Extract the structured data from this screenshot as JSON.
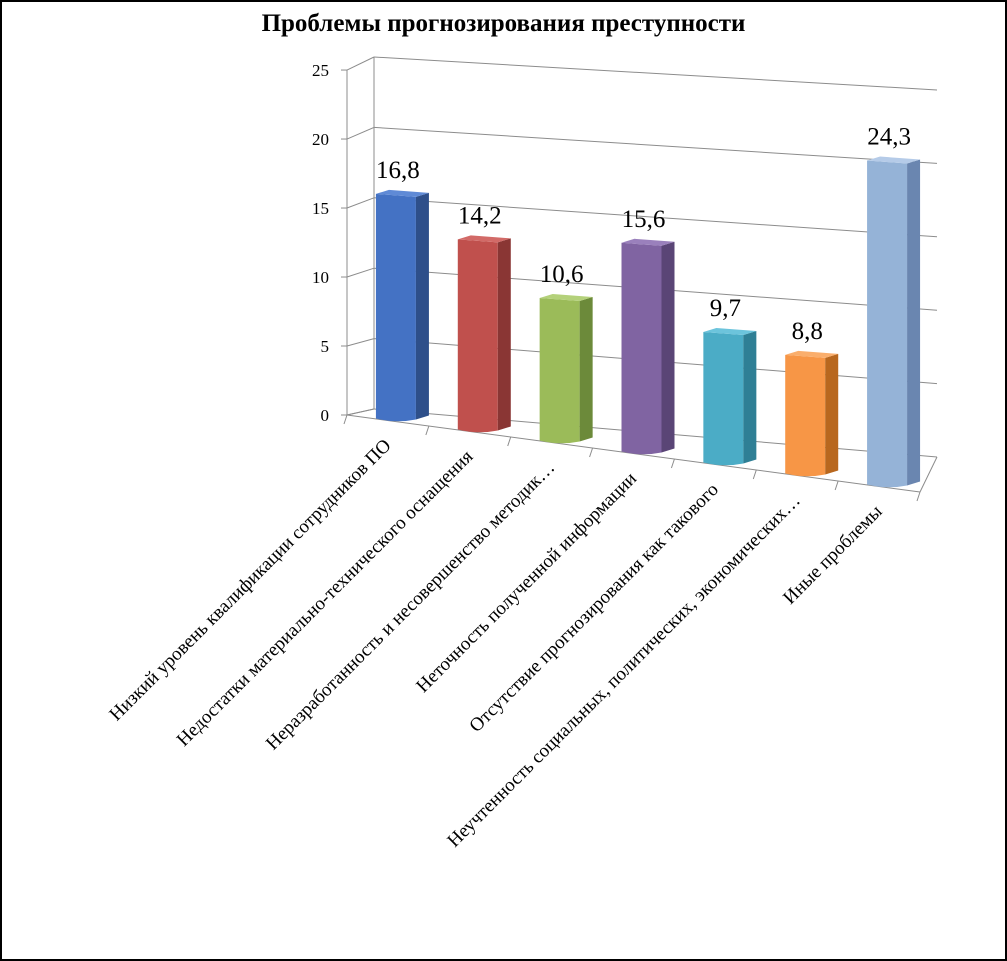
{
  "chart_data": {
    "type": "bar",
    "title": "Проблемы прогнозирования преступности",
    "categories": [
      "Низкий уровень квалификации сотрудников ПО",
      "Недостатки материально-технического оснащения",
      "Неразработанность и несовершенство методик…",
      "Неточность полученной информации",
      "Отсутствие прогнозирования как такового",
      "Неучтенность социальных, политических, экономических…",
      "Иные проблемы"
    ],
    "values": [
      16.8,
      14.2,
      10.6,
      15.6,
      9.7,
      8.8,
      24.3
    ],
    "value_labels": [
      "16,8",
      "14,2",
      "10,6",
      "15,6",
      "9,7",
      "8,8",
      "24,3"
    ],
    "yticks": [
      "0",
      "5",
      "10",
      "15",
      "20",
      "25"
    ],
    "ylim": [
      0,
      25
    ],
    "xlabel": "",
    "ylabel": "",
    "grid": true,
    "legend": "none",
    "colors": [
      "#4472C4",
      "#C0504D",
      "#9BBB59",
      "#8064A2",
      "#4BACC6",
      "#F79646",
      "#95B3D7"
    ],
    "colors_side": [
      "#2E4F8A",
      "#8A3634",
      "#6C8A3A",
      "#5A4576",
      "#2F7F95",
      "#B8671E",
      "#6A86B0"
    ],
    "colors_top": [
      "#5F8AD6",
      "#D26A67",
      "#B4D17A",
      "#9A80BC",
      "#6CC4DC",
      "#FAAE6C",
      "#B5CBE8"
    ]
  }
}
